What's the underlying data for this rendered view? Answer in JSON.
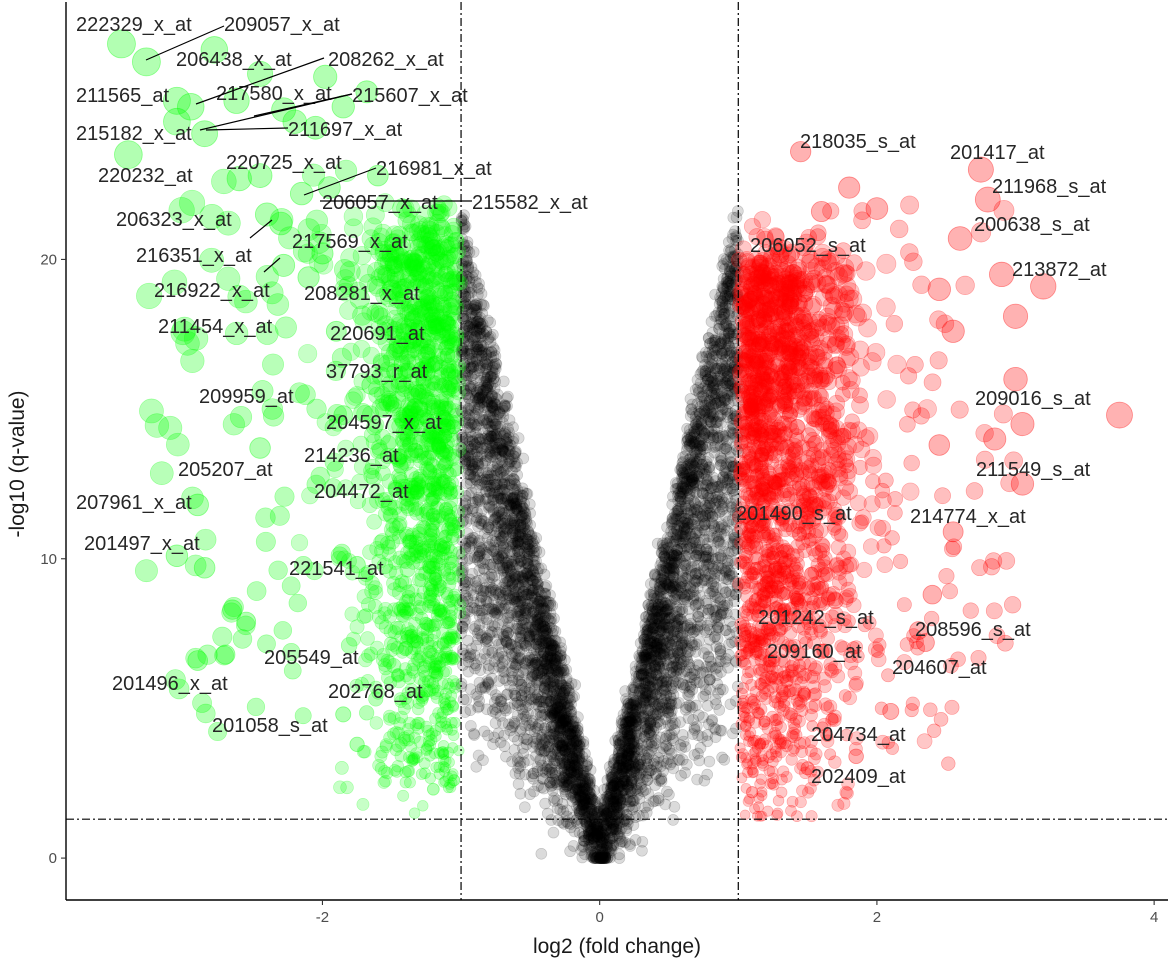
{
  "chart_data": {
    "type": "scatter",
    "title": "",
    "xlabel": "log2 (fold change)",
    "ylabel": "-log10 (q-value)",
    "xlim": [
      -3.85,
      4.1
    ],
    "ylim": [
      -1.4,
      28.6
    ],
    "x_ticks": [
      -2,
      0,
      2,
      4
    ],
    "y_ticks": [
      0,
      10,
      20
    ],
    "x_tick_labels": [
      "-2",
      "0",
      "2",
      "4"
    ],
    "y_tick_labels": [
      "0",
      "10",
      "20"
    ],
    "grid": false,
    "legend": "none",
    "thresholds": {
      "log2fc": [
        -1,
        1
      ],
      "neg_log10_q": 1.3
    },
    "colors": {
      "down": "#00ff00",
      "up": "#ff0000",
      "not_significant": "#000000"
    },
    "series": [
      {
        "group": "down",
        "points": [
          {
            "x": -3.45,
            "y": 27.2,
            "label": "222329_x_at"
          },
          {
            "x": -2.78,
            "y": 27.0,
            "label": "209057_x_at"
          },
          {
            "x": -3.27,
            "y": 26.6
          },
          {
            "x": -2.45,
            "y": 26.2,
            "label": "206438_x_at"
          },
          {
            "x": -1.98,
            "y": 26.1,
            "label": "208262_x_at"
          },
          {
            "x": -3.05,
            "y": 25.3
          },
          {
            "x": -2.95,
            "y": 25.1,
            "label": "211565_at"
          },
          {
            "x": -2.62,
            "y": 25.3
          },
          {
            "x": -2.28,
            "y": 25.0,
            "label": "217580_x_at"
          },
          {
            "x": -1.68,
            "y": 25.6,
            "label": "215607_x_at"
          },
          {
            "x": -1.85,
            "y": 25.1
          },
          {
            "x": -2.2,
            "y": 24.6
          },
          {
            "x": -3.05,
            "y": 24.6
          },
          {
            "x": -2.85,
            "y": 24.2,
            "label": "215182_x_at"
          },
          {
            "x": -2.05,
            "y": 24.4,
            "label": "211697_x_at"
          },
          {
            "x": -3.4,
            "y": 23.5,
            "label": "220232_at"
          },
          {
            "x": -2.6,
            "y": 22.7
          },
          {
            "x": -2.45,
            "y": 22.8
          },
          {
            "x": -1.95,
            "y": 22.4,
            "label": "220725_x_at"
          },
          {
            "x": -1.6,
            "y": 22.8,
            "label": "216981_x_at"
          },
          {
            "x": -2.15,
            "y": 22.2,
            "label": "206057_x_at"
          },
          {
            "x": -2.4,
            "y": 21.5
          },
          {
            "x": -2.3,
            "y": 21.2,
            "label": "206323_x_at"
          },
          {
            "x": -2.28,
            "y": 19.8,
            "label": "216351_x_at"
          },
          {
            "x": -2.0,
            "y": 20.2,
            "label": "217569_x_at"
          },
          {
            "x": -2.1,
            "y": 19.4,
            "label": "216922_x_at"
          },
          {
            "x": -1.5,
            "y": 19.0,
            "label": "208281_x_at"
          },
          {
            "x": -1.9,
            "y": 17.6,
            "label": "211454_x_at"
          },
          {
            "x": -1.35,
            "y": 17.3,
            "label": "220691_at"
          },
          {
            "x": -1.25,
            "y": 16.8
          },
          {
            "x": -1.65,
            "y": 15.8,
            "label": "37793_r_at"
          },
          {
            "x": -1.3,
            "y": 15.0
          },
          {
            "x": -1.85,
            "y": 14.8,
            "label": "209959_at"
          },
          {
            "x": -1.1,
            "y": 14.4,
            "label": "204597_x_at"
          },
          {
            "x": -1.45,
            "y": 13.4,
            "label": "214236_at"
          },
          {
            "x": -2.45,
            "y": 13.7,
            "label": "205207_at"
          },
          {
            "x": -1.2,
            "y": 12.5,
            "label": "204472_at"
          },
          {
            "x": -2.9,
            "y": 11.8,
            "label": "207961_x_at"
          },
          {
            "x": -3.05,
            "y": 10.1,
            "label": "201497_x_at"
          },
          {
            "x": -2.85,
            "y": 9.7
          },
          {
            "x": -1.75,
            "y": 9.8,
            "label": "221541_at"
          },
          {
            "x": -2.65,
            "y": 8.3
          },
          {
            "x": -2.55,
            "y": 7.9
          },
          {
            "x": -1.4,
            "y": 7.0,
            "label": "205549_at"
          },
          {
            "x": -2.9,
            "y": 6.6,
            "label": "201496_x_at"
          },
          {
            "x": -2.7,
            "y": 6.8
          },
          {
            "x": -1.25,
            "y": 5.6,
            "label": "202768_at"
          },
          {
            "x": -1.85,
            "y": 4.8,
            "label": "201058_s_at"
          },
          {
            "x": -1.75,
            "y": 3.8
          },
          {
            "x": -1.05,
            "y": 2.6
          },
          {
            "x": -1.2,
            "y": 2.3
          }
        ]
      },
      {
        "group": "up",
        "points": [
          {
            "x": 1.45,
            "y": 23.6,
            "label": "218035_s_at"
          },
          {
            "x": 2.75,
            "y": 23.0,
            "label": "201417_at"
          },
          {
            "x": 2.8,
            "y": 22.0,
            "label": "211968_s_at"
          },
          {
            "x": 2.6,
            "y": 20.7,
            "label": "200638_s_at"
          },
          {
            "x": 1.3,
            "y": 20.2,
            "label": "206052_s_at"
          },
          {
            "x": 3.2,
            "y": 19.1,
            "label": "213872_at"
          },
          {
            "x": 2.9,
            "y": 19.5
          },
          {
            "x": 2.45,
            "y": 19.0
          },
          {
            "x": 3.0,
            "y": 18.1
          },
          {
            "x": 2.55,
            "y": 17.6
          },
          {
            "x": 1.8,
            "y": 22.4
          },
          {
            "x": 1.6,
            "y": 21.6
          },
          {
            "x": 2.0,
            "y": 21.7
          },
          {
            "x": 3.0,
            "y": 16.0,
            "label": "209016_s_at"
          },
          {
            "x": 3.75,
            "y": 14.8
          },
          {
            "x": 3.05,
            "y": 14.5
          },
          {
            "x": 2.85,
            "y": 14.0,
            "label": "211549_s_at"
          },
          {
            "x": 2.45,
            "y": 13.8
          },
          {
            "x": 3.05,
            "y": 12.5
          },
          {
            "x": 1.55,
            "y": 11.8,
            "label": "201490_s_at"
          },
          {
            "x": 2.55,
            "y": 10.9,
            "label": "214774_x_at"
          },
          {
            "x": 1.7,
            "y": 8.6,
            "label": "201242_s_at"
          },
          {
            "x": 2.4,
            "y": 8.8
          },
          {
            "x": 2.3,
            "y": 7.6,
            "label": "208596_s_at"
          },
          {
            "x": 1.6,
            "y": 6.9,
            "label": "209160_at"
          },
          {
            "x": 2.35,
            "y": 7.2,
            "label": "204607_at"
          },
          {
            "x": 2.1,
            "y": 4.9,
            "label": "204734_at"
          },
          {
            "x": 1.85,
            "y": 3.4,
            "label": "202409_at"
          },
          {
            "x": 1.5,
            "y": 3.0
          },
          {
            "x": 1.1,
            "y": 2.2
          }
        ]
      }
    ],
    "annotations": [
      "222329_x_at",
      "209057_x_at",
      "206438_x_at",
      "208262_x_at",
      "211565_at",
      "217580_x_at",
      "215607_x_at",
      "215182_x_at",
      "211697_x_at",
      "220232_at",
      "220725_x_at",
      "216981_x_at",
      "206057_x_at",
      "215582_x_at",
      "206323_x_at",
      "217569_x_at",
      "216351_x_at",
      "216922_x_at",
      "208281_x_at",
      "211454_x_at",
      "220691_at",
      "37793_r_at",
      "209959_at",
      "204597_x_at",
      "214236_at",
      "205207_at",
      "204472_at",
      "207961_x_at",
      "201497_x_at",
      "221541_at",
      "205549_at",
      "201496_x_at",
      "202768_at",
      "201058_s_at",
      "218035_s_at",
      "201417_at",
      "211968_s_at",
      "200638_s_at",
      "206052_s_at",
      "213872_at",
      "209016_s_at",
      "211549_s_at",
      "201490_s_at",
      "214774_x_at",
      "201242_s_at",
      "208596_s_at",
      "209160_at",
      "204607_at",
      "204734_at",
      "202409_at"
    ]
  }
}
